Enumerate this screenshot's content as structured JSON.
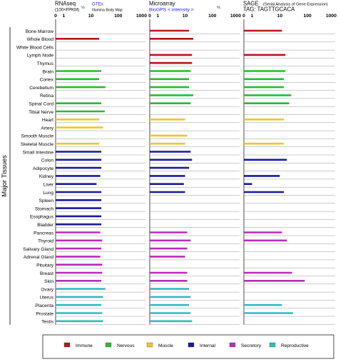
{
  "chart_data": {
    "type": "bar",
    "ylabel": "Major Tissues",
    "panels": [
      {
        "id": "rnaseq",
        "title": "RNAseq",
        "subtitle": "(100×FPKM)",
        "subtitle_exp": "½",
        "source_label": "GTEx",
        "source_sub": "Illumina Body Map",
        "ticks": [
          "0",
          "1",
          "10",
          "100",
          "1000"
        ]
      },
      {
        "id": "microarray",
        "title": "Microarray",
        "subtitle": "BioGPS   < intensity >",
        "subtitle_exp": "⅔",
        "source_label": "",
        "source_sub": "",
        "ticks": [
          "0",
          "1",
          "10",
          "100",
          "1000"
        ]
      },
      {
        "id": "sage",
        "title": "SAGE",
        "title_note": "(Serial Analysis of Gene Expression)",
        "subtitle": "TAG: TAGTTGCACA",
        "subtitle_exp": "",
        "source_label": "",
        "source_sub": "",
        "ticks": [
          "0",
          "1",
          "10",
          "100",
          "1000"
        ]
      }
    ],
    "categories": [
      "Bone Marrow",
      "Whole Blood",
      "White Blood Cells",
      "Lymph Node",
      "Thymus",
      "Brain",
      "Cortex",
      "Cerebellum",
      "Retina",
      "Spinal Cord",
      "Tibial Nerve",
      "Heart",
      "Artery",
      "Smooth Muscle",
      "Skeletal Muscle",
      "Small Intestine",
      "Colon",
      "Adipocyte",
      "Kidney",
      "Liver",
      "Lung",
      "Spleen",
      "Stomach",
      "Esophagus",
      "Bladder",
      "Pancreas",
      "Thyroid",
      "Salivary Gland",
      "Adrenal Gland",
      "Pituitary",
      "Breast",
      "Skin",
      "Ovary",
      "Uterus",
      "Placenta",
      "Prostate",
      "Testis"
    ],
    "groups": [
      "immune",
      "immune",
      "immune",
      "immune",
      "immune",
      "nervous",
      "nervous",
      "nervous",
      "nervous",
      "nervous",
      "nervous",
      "muscle",
      "muscle",
      "muscle",
      "muscle",
      "internal",
      "internal",
      "internal",
      "internal",
      "internal",
      "internal",
      "internal",
      "internal",
      "internal",
      "internal",
      "secretory",
      "secretory",
      "secretory",
      "secretory",
      "secretory",
      "secretory",
      "secretory",
      "reproductive",
      "reproductive",
      "reproductive",
      "reproductive",
      "reproductive"
    ],
    "series": [
      {
        "panel": "rnaseq",
        "values": [
          null,
          20,
          null,
          null,
          null,
          24,
          20,
          34,
          null,
          24,
          32,
          20,
          28,
          null,
          20,
          24,
          24,
          24,
          22,
          16,
          24,
          24,
          24,
          24,
          24,
          22,
          26,
          24,
          22,
          26,
          26,
          24,
          34,
          28,
          24,
          26,
          28
        ]
      },
      {
        "panel": "microarray",
        "values": [
          14,
          20,
          null,
          18,
          18,
          16,
          14,
          14,
          20,
          16,
          null,
          10,
          null,
          12,
          10,
          16,
          18,
          14,
          10,
          9,
          10,
          null,
          null,
          null,
          null,
          12,
          16,
          12,
          10,
          null,
          12,
          12,
          14,
          16,
          14,
          16,
          18
        ]
      },
      {
        "panel": "sage",
        "values": [
          12,
          null,
          null,
          16,
          null,
          16,
          14,
          14,
          26,
          22,
          null,
          14,
          null,
          null,
          14,
          null,
          18,
          null,
          10,
          1,
          14,
          null,
          null,
          null,
          null,
          12,
          18,
          null,
          null,
          null,
          28,
          80,
          null,
          null,
          12,
          30,
          null
        ]
      }
    ],
    "colors": {
      "immune": "#b2191c",
      "nervous": "#2eb82e",
      "muscle": "#f5c22c",
      "internal": "#1a1a99",
      "secretory": "#b82db8",
      "reproductive": "#2ebdbd"
    },
    "legend": [
      {
        "key": "immune",
        "label": "Immune"
      },
      {
        "key": "nervous",
        "label": "Nervous"
      },
      {
        "key": "muscle",
        "label": "Muscle"
      },
      {
        "key": "internal",
        "label": "Internal"
      },
      {
        "key": "secretory",
        "label": "Secretory"
      },
      {
        "key": "reproductive",
        "label": "Reproductive"
      }
    ],
    "legend_position": "bottom",
    "xscale": "log (0 at origin)",
    "grid": "horizontal row lines"
  }
}
